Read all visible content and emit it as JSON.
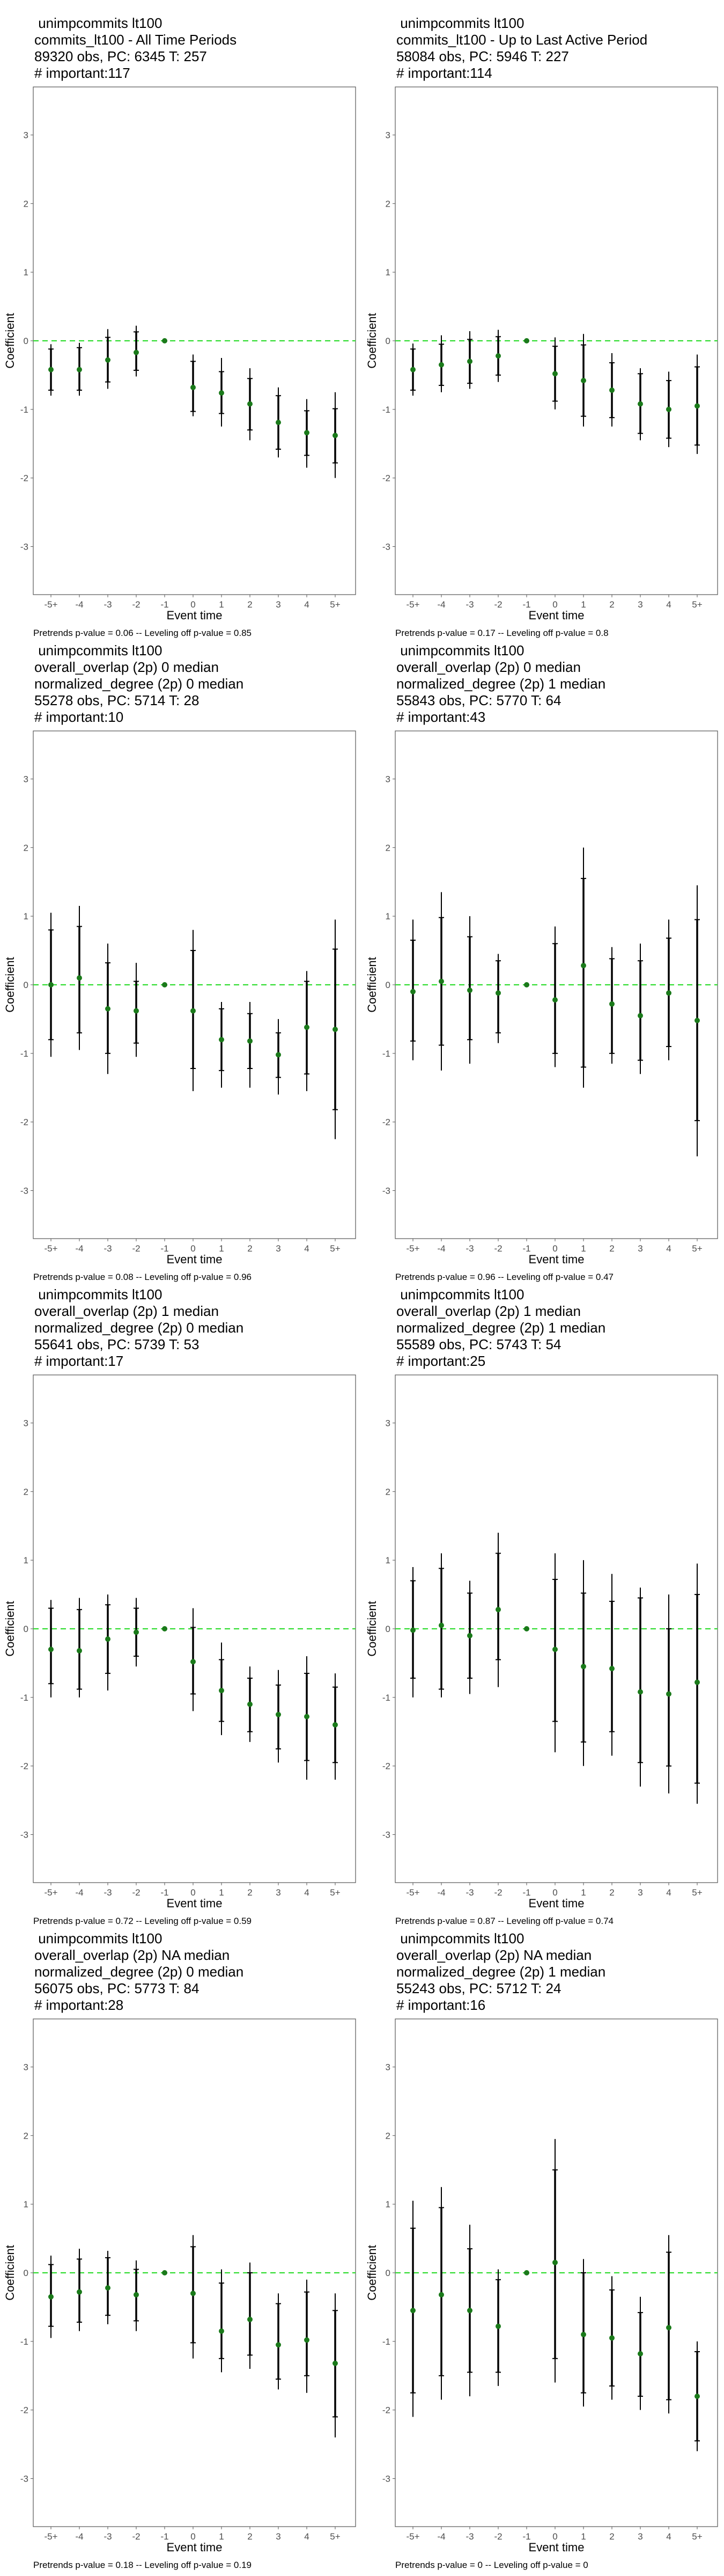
{
  "axis": {
    "xlabel": "Event time",
    "ylabel": "Coefficient",
    "ylim": [
      -3.7,
      3.7
    ],
    "yticks": [
      -3,
      -2,
      -1,
      0,
      1,
      2,
      3
    ],
    "categories": [
      "-5+",
      "-4",
      "-3",
      "-2",
      "-1",
      "0",
      "1",
      "2",
      "3",
      "4",
      "5+"
    ]
  },
  "colors": {
    "point": "#1a7a1a",
    "refline": "#33dd33",
    "interval": "#000000",
    "frame": "#555555",
    "tick_text": "#4d4d4d"
  },
  "chart_data": [
    {
      "type": "scatter",
      "title_lines": [
        " unimpcommits lt100",
        "commits_lt100 - All Time Periods",
        "89320 obs, PC: 6345 T: 257",
        "# important:117"
      ],
      "footnote": "Pretrends p-value = 0.06 -- Leveling off p-value = 0.85",
      "estimates": [
        -0.42,
        -0.42,
        -0.28,
        -0.17,
        0.0,
        -0.68,
        -0.76,
        -0.92,
        -1.19,
        -1.34,
        -1.38
      ],
      "inner": [
        [
          -0.72,
          -0.12
        ],
        [
          -0.72,
          -0.1
        ],
        [
          -0.6,
          0.05
        ],
        [
          -0.43,
          0.13
        ],
        [
          0.0,
          0.0
        ],
        [
          -1.03,
          -0.3
        ],
        [
          -1.06,
          -0.45
        ],
        [
          -1.3,
          -0.55
        ],
        [
          -1.58,
          -0.8
        ],
        [
          -1.67,
          -1.02
        ],
        [
          -1.78,
          -0.99
        ]
      ],
      "outer": [
        [
          -0.8,
          -0.05
        ],
        [
          -0.8,
          -0.03
        ],
        [
          -0.7,
          0.17
        ],
        [
          -0.52,
          0.22
        ],
        [
          0.0,
          0.0
        ],
        [
          -1.1,
          -0.2
        ],
        [
          -1.25,
          -0.25
        ],
        [
          -1.45,
          -0.4
        ],
        [
          -1.7,
          -0.68
        ],
        [
          -1.85,
          -0.85
        ],
        [
          -2.0,
          -0.75
        ]
      ]
    },
    {
      "type": "scatter",
      "title_lines": [
        " unimpcommits lt100",
        "commits_lt100 - Up to Last Active Period",
        "58084 obs, PC: 5946 T: 227",
        "# important:114"
      ],
      "footnote": "Pretrends p-value = 0.17 -- Leveling off p-value = 0.8",
      "estimates": [
        -0.42,
        -0.35,
        -0.3,
        -0.22,
        0.0,
        -0.48,
        -0.58,
        -0.72,
        -0.92,
        -1.0,
        -0.95
      ],
      "inner": [
        [
          -0.72,
          -0.12
        ],
        [
          -0.65,
          -0.05
        ],
        [
          -0.62,
          0.02
        ],
        [
          -0.5,
          0.06
        ],
        [
          0.0,
          0.0
        ],
        [
          -0.88,
          -0.08
        ],
        [
          -1.1,
          -0.06
        ],
        [
          -1.12,
          -0.32
        ],
        [
          -1.35,
          -0.48
        ],
        [
          -1.42,
          -0.58
        ],
        [
          -1.52,
          -0.38
        ]
      ],
      "outer": [
        [
          -0.8,
          -0.04
        ],
        [
          -0.75,
          0.08
        ],
        [
          -0.7,
          0.14
        ],
        [
          -0.6,
          0.16
        ],
        [
          0.0,
          0.0
        ],
        [
          -1.0,
          0.05
        ],
        [
          -1.25,
          0.1
        ],
        [
          -1.25,
          -0.18
        ],
        [
          -1.45,
          -0.4
        ],
        [
          -1.55,
          -0.45
        ],
        [
          -1.65,
          -0.2
        ]
      ]
    },
    {
      "type": "scatter",
      "title_lines": [
        " unimpcommits lt100",
        "overall_overlap (2p) 0 median",
        "normalized_degree (2p) 0 median",
        "55278 obs, PC: 5714 T: 28",
        "# important:10"
      ],
      "footnote": "Pretrends p-value = 0.08 -- Leveling off p-value = 0.96",
      "estimates": [
        0.0,
        0.1,
        -0.35,
        -0.38,
        0.0,
        -0.38,
        -0.8,
        -0.82,
        -1.02,
        -0.62,
        -0.65
      ],
      "inner": [
        [
          -0.8,
          0.8
        ],
        [
          -0.7,
          0.85
        ],
        [
          -1.0,
          0.32
        ],
        [
          -0.85,
          0.05
        ],
        [
          0.0,
          0.0
        ],
        [
          -1.22,
          0.5
        ],
        [
          -1.25,
          -0.35
        ],
        [
          -1.22,
          -0.42
        ],
        [
          -1.35,
          -0.7
        ],
        [
          -1.3,
          0.05
        ],
        [
          -1.82,
          0.52
        ]
      ],
      "outer": [
        [
          -1.05,
          1.05
        ],
        [
          -0.95,
          1.15
        ],
        [
          -1.3,
          0.6
        ],
        [
          -1.05,
          0.32
        ],
        [
          0.0,
          0.0
        ],
        [
          -1.55,
          0.8
        ],
        [
          -1.5,
          -0.25
        ],
        [
          -1.5,
          -0.25
        ],
        [
          -1.6,
          -0.5
        ],
        [
          -1.55,
          0.2
        ],
        [
          -2.25,
          0.95
        ]
      ]
    },
    {
      "type": "scatter",
      "title_lines": [
        " unimpcommits lt100",
        "overall_overlap (2p) 0 median",
        "normalized_degree (2p) 1 median",
        "55843 obs, PC: 5770 T: 64",
        "# important:43"
      ],
      "footnote": "Pretrends p-value = 0.96 -- Leveling off p-value = 0.47",
      "estimates": [
        -0.1,
        0.05,
        -0.08,
        -0.12,
        0.0,
        -0.22,
        0.28,
        -0.28,
        -0.45,
        -0.12,
        -0.52
      ],
      "inner": [
        [
          -0.82,
          0.65
        ],
        [
          -0.88,
          0.98
        ],
        [
          -0.8,
          0.7
        ],
        [
          -0.7,
          0.35
        ],
        [
          0.0,
          0.0
        ],
        [
          -1.0,
          0.6
        ],
        [
          -1.2,
          1.55
        ],
        [
          -1.0,
          0.38
        ],
        [
          -1.1,
          0.35
        ],
        [
          -0.9,
          0.68
        ],
        [
          -1.98,
          0.95
        ]
      ],
      "outer": [
        [
          -1.1,
          0.95
        ],
        [
          -1.25,
          1.35
        ],
        [
          -1.15,
          1.0
        ],
        [
          -0.85,
          0.45
        ],
        [
          0.0,
          0.0
        ],
        [
          -1.2,
          0.85
        ],
        [
          -1.5,
          2.0
        ],
        [
          -1.15,
          0.55
        ],
        [
          -1.3,
          0.6
        ],
        [
          -1.1,
          0.95
        ],
        [
          -2.5,
          1.45
        ]
      ]
    },
    {
      "type": "scatter",
      "title_lines": [
        " unimpcommits lt100",
        "overall_overlap (2p) 1 median",
        "normalized_degree (2p) 0 median",
        "55641 obs, PC: 5739 T: 53",
        "# important:17"
      ],
      "footnote": "Pretrends p-value = 0.72 -- Leveling off p-value = 0.59",
      "estimates": [
        -0.3,
        -0.32,
        -0.15,
        -0.05,
        0.0,
        -0.48,
        -0.9,
        -1.1,
        -1.25,
        -1.28,
        -1.4
      ],
      "inner": [
        [
          -0.8,
          0.3
        ],
        [
          -0.88,
          0.28
        ],
        [
          -0.65,
          0.35
        ],
        [
          -0.4,
          0.3
        ],
        [
          0.0,
          0.0
        ],
        [
          -0.95,
          0.02
        ],
        [
          -1.35,
          -0.45
        ],
        [
          -1.5,
          -0.72
        ],
        [
          -1.75,
          -0.82
        ],
        [
          -1.92,
          -0.65
        ],
        [
          -1.95,
          -0.85
        ]
      ],
      "outer": [
        [
          -1.0,
          0.42
        ],
        [
          -1.0,
          0.45
        ],
        [
          -0.9,
          0.5
        ],
        [
          -0.55,
          0.45
        ],
        [
          0.0,
          0.0
        ],
        [
          -1.2,
          0.3
        ],
        [
          -1.55,
          -0.2
        ],
        [
          -1.65,
          -0.55
        ],
        [
          -1.95,
          -0.6
        ],
        [
          -2.2,
          -0.4
        ],
        [
          -2.2,
          -0.65
        ]
      ]
    },
    {
      "type": "scatter",
      "title_lines": [
        " unimpcommits lt100",
        "overall_overlap (2p) 1 median",
        "normalized_degree (2p) 1 median",
        "55589 obs, PC: 5743 T: 54",
        "# important:25"
      ],
      "footnote": "Pretrends p-value = 0.87 -- Leveling off p-value = 0.74",
      "estimates": [
        -0.02,
        0.05,
        -0.1,
        0.28,
        0.0,
        -0.3,
        -0.55,
        -0.58,
        -0.92,
        -0.95,
        -0.78
      ],
      "inner": [
        [
          -0.72,
          0.7
        ],
        [
          -0.88,
          0.88
        ],
        [
          -0.72,
          0.52
        ],
        [
          -0.45,
          1.1
        ],
        [
          0.0,
          0.0
        ],
        [
          -1.35,
          0.72
        ],
        [
          -1.65,
          0.52
        ],
        [
          -1.5,
          0.4
        ],
        [
          -1.95,
          0.45
        ],
        [
          -2.0,
          0.0
        ],
        [
          -2.25,
          0.5
        ]
      ],
      "outer": [
        [
          -1.0,
          0.9
        ],
        [
          -1.0,
          1.1
        ],
        [
          -0.95,
          0.7
        ],
        [
          -0.85,
          1.4
        ],
        [
          0.0,
          0.0
        ],
        [
          -1.8,
          1.1
        ],
        [
          -2.0,
          1.0
        ],
        [
          -1.85,
          0.8
        ],
        [
          -2.3,
          0.6
        ],
        [
          -2.4,
          0.5
        ],
        [
          -2.55,
          0.95
        ]
      ]
    },
    {
      "type": "scatter",
      "title_lines": [
        " unimpcommits lt100",
        "overall_overlap (2p) NA median",
        "normalized_degree (2p) 0 median",
        "56075 obs, PC: 5773 T: 84",
        "# important:28"
      ],
      "footnote": "Pretrends p-value = 0.18 -- Leveling off p-value = 0.19",
      "estimates": [
        -0.35,
        -0.28,
        -0.22,
        -0.32,
        0.0,
        -0.3,
        -0.85,
        -0.68,
        -1.05,
        -0.98,
        -1.32
      ],
      "inner": [
        [
          -0.78,
          0.12
        ],
        [
          -0.72,
          0.2
        ],
        [
          -0.62,
          0.22
        ],
        [
          -0.7,
          0.05
        ],
        [
          0.0,
          0.0
        ],
        [
          -1.02,
          0.38
        ],
        [
          -1.25,
          -0.15
        ],
        [
          -1.2,
          0.0
        ],
        [
          -1.55,
          -0.45
        ],
        [
          -1.5,
          -0.28
        ],
        [
          -2.1,
          -0.55
        ]
      ],
      "outer": [
        [
          -0.95,
          0.25
        ],
        [
          -0.85,
          0.35
        ],
        [
          -0.75,
          0.32
        ],
        [
          -0.85,
          0.18
        ],
        [
          0.0,
          0.0
        ],
        [
          -1.25,
          0.55
        ],
        [
          -1.45,
          0.05
        ],
        [
          -1.4,
          0.15
        ],
        [
          -1.7,
          -0.3
        ],
        [
          -1.75,
          -0.1
        ],
        [
          -2.4,
          -0.3
        ]
      ]
    },
    {
      "type": "scatter",
      "title_lines": [
        " unimpcommits lt100",
        "overall_overlap (2p) NA median",
        "normalized_degree (2p) 1 median",
        "55243 obs, PC: 5712 T: 24",
        "# important:16"
      ],
      "footnote": "Pretrends p-value = 0 -- Leveling off p-value = 0",
      "estimates": [
        -0.55,
        -0.32,
        -0.55,
        -0.78,
        0.0,
        0.15,
        -0.9,
        -0.95,
        -1.18,
        -0.8,
        -1.8
      ],
      "inner": [
        [
          -1.75,
          0.65
        ],
        [
          -1.5,
          0.95
        ],
        [
          -1.45,
          0.35
        ],
        [
          -1.45,
          -0.1
        ],
        [
          0.0,
          0.0
        ],
        [
          -1.25,
          1.5
        ],
        [
          -1.75,
          0.0
        ],
        [
          -1.65,
          -0.25
        ],
        [
          -1.8,
          -0.58
        ],
        [
          -1.85,
          0.3
        ],
        [
          -2.45,
          -1.15
        ]
      ],
      "outer": [
        [
          -2.1,
          1.05
        ],
        [
          -1.85,
          1.25
        ],
        [
          -1.8,
          0.7
        ],
        [
          -1.65,
          0.05
        ],
        [
          0.0,
          0.0
        ],
        [
          -1.6,
          1.95
        ],
        [
          -1.95,
          0.2
        ],
        [
          -1.85,
          -0.05
        ],
        [
          -2.0,
          -0.35
        ],
        [
          -2.05,
          0.55
        ],
        [
          -2.6,
          -1.0
        ]
      ]
    }
  ]
}
